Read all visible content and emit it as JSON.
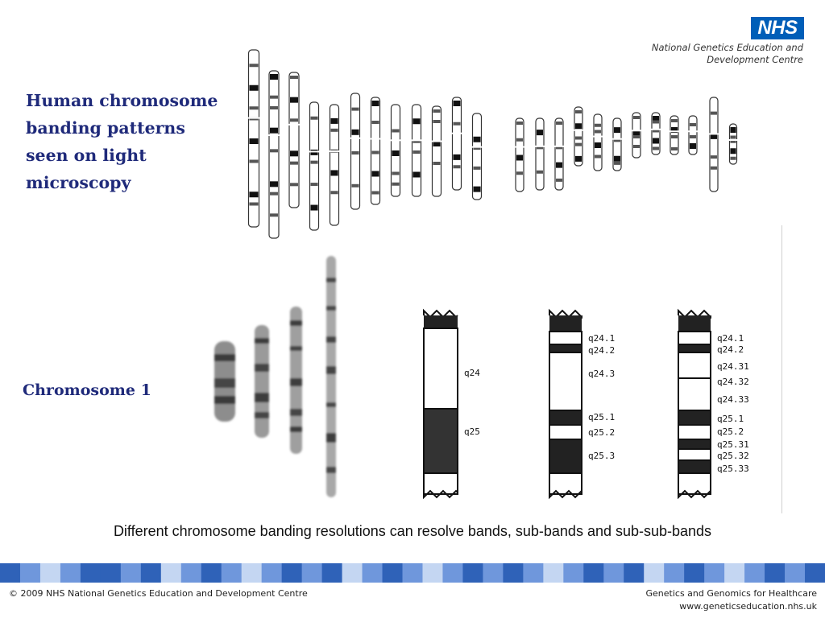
{
  "logo": {
    "text": "NHS",
    "org_line1": "National Genetics Education and",
    "org_line2": "Development Centre"
  },
  "heading_main": {
    "line1": "Human chromosome",
    "line2": "banding patterns",
    "line3": "seen on light",
    "line4": "microscopy"
  },
  "heading_chr1": "Chromosome 1",
  "ideograms": {
    "panel1": {
      "labels": [
        "q24",
        "q25"
      ]
    },
    "panel2": {
      "labels": [
        "q24.1",
        "q24.2",
        "q24.3",
        "q25.1",
        "q25.2",
        "q25.3"
      ]
    },
    "panel3": {
      "labels": [
        "q24.1",
        "q24.2",
        "q24.31",
        "q24.32",
        "q24.33",
        "q25.1",
        "q25.2",
        "q25.31",
        "q25.32",
        "q25.33"
      ]
    }
  },
  "caption": "Different chromosome banding resolutions can resolve bands, sub-bands and sub-sub-bands",
  "footer": {
    "copyright": "© 2009 NHS National Genetics Education and Development Centre",
    "program": "Genetics and Genomics for Healthcare",
    "url": "www.geneticseducation.nhs.uk"
  },
  "colors": {
    "heading": "#1f2a7a",
    "nhs_blue": "#005EB8",
    "band_dark": "#2f62b8",
    "band_mid": "#6f97dc",
    "band_light": "#c4d6f2"
  }
}
